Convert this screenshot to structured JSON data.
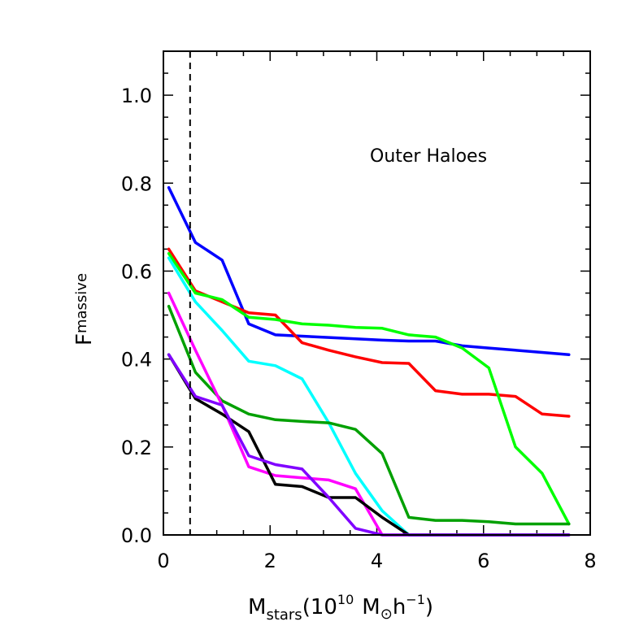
{
  "chart_data": {
    "type": "line",
    "title": "",
    "annotation": "Outer Haloes",
    "xlabel": {
      "main": "M",
      "sub": "stars",
      "paren_open": "(10",
      "exp": "10",
      "unit_m": "M",
      "sun_symbol": "⊙",
      "unit_h": "h",
      "h_exp": "−1",
      "paren_close": ")"
    },
    "ylabel": {
      "main": "F",
      "sub": "massive"
    },
    "xlim": [
      0,
      8
    ],
    "ylim": [
      0,
      1.1
    ],
    "xticks": [
      0,
      2,
      4,
      6,
      8
    ],
    "xtick_labels": [
      "0",
      "2",
      "4",
      "6",
      "8"
    ],
    "yticks": [
      0.0,
      0.2,
      0.4,
      0.6,
      0.8,
      1.0
    ],
    "ytick_labels": [
      "0.0",
      "0.2",
      "0.4",
      "0.6",
      "0.8",
      "1.0"
    ],
    "reference_line_x": 0.5,
    "x": [
      0.1,
      0.6,
      1.1,
      1.6,
      2.1,
      2.6,
      3.1,
      3.6,
      4.1,
      4.6,
      5.1,
      5.6,
      6.1,
      6.6,
      7.1,
      7.6
    ],
    "series": [
      {
        "name": "blue",
        "color": "#0000ff",
        "values": [
          0.79,
          0.665,
          0.625,
          0.48,
          0.455,
          0.452,
          0.449,
          0.446,
          0.443,
          0.441,
          0.441,
          0.43,
          0.425,
          0.42,
          0.415,
          0.41
        ]
      },
      {
        "name": "red",
        "color": "#ff0000",
        "values": [
          0.65,
          0.555,
          0.53,
          0.505,
          0.5,
          0.437,
          0.42,
          0.405,
          0.392,
          0.39,
          0.328,
          0.32,
          0.32,
          0.315,
          0.275,
          0.27
        ]
      },
      {
        "name": "green",
        "color": "#00ff00",
        "values": [
          0.64,
          0.55,
          0.535,
          0.495,
          0.49,
          0.48,
          0.477,
          0.472,
          0.47,
          0.455,
          0.45,
          0.425,
          0.38,
          0.2,
          0.14,
          0.025
        ]
      },
      {
        "name": "cyan",
        "color": "#00ffff",
        "values": [
          0.63,
          0.53,
          0.465,
          0.395,
          0.385,
          0.355,
          0.255,
          0.14,
          0.055,
          0.0,
          0.0,
          0.0,
          0.0,
          0.0,
          0.0,
          0.0
        ]
      },
      {
        "name": "dark-green",
        "color": "#00a000",
        "values": [
          0.52,
          0.37,
          0.305,
          0.275,
          0.262,
          0.258,
          0.255,
          0.24,
          0.185,
          0.04,
          0.033,
          0.033,
          0.03,
          0.025,
          0.025,
          0.025
        ]
      },
      {
        "name": "magenta",
        "color": "#ff00ff",
        "values": [
          0.55,
          0.42,
          0.295,
          0.155,
          0.135,
          0.13,
          0.125,
          0.105,
          0.0,
          0.0,
          0.0,
          0.0,
          0.0,
          0.0,
          0.0,
          0.0
        ]
      },
      {
        "name": "black",
        "color": "#000000",
        "values": [
          0.41,
          0.31,
          0.275,
          0.235,
          0.115,
          0.11,
          0.085,
          0.085,
          0.04,
          0.0,
          0.0,
          0.0,
          0.0,
          0.0,
          0.0,
          0.0
        ]
      },
      {
        "name": "purple",
        "color": "#8000ff",
        "values": [
          0.41,
          0.315,
          0.295,
          0.18,
          0.16,
          0.15,
          0.085,
          0.015,
          0.0,
          0.0,
          0.0,
          0.0,
          0.0,
          0.0,
          0.0,
          0.0
        ]
      }
    ]
  }
}
